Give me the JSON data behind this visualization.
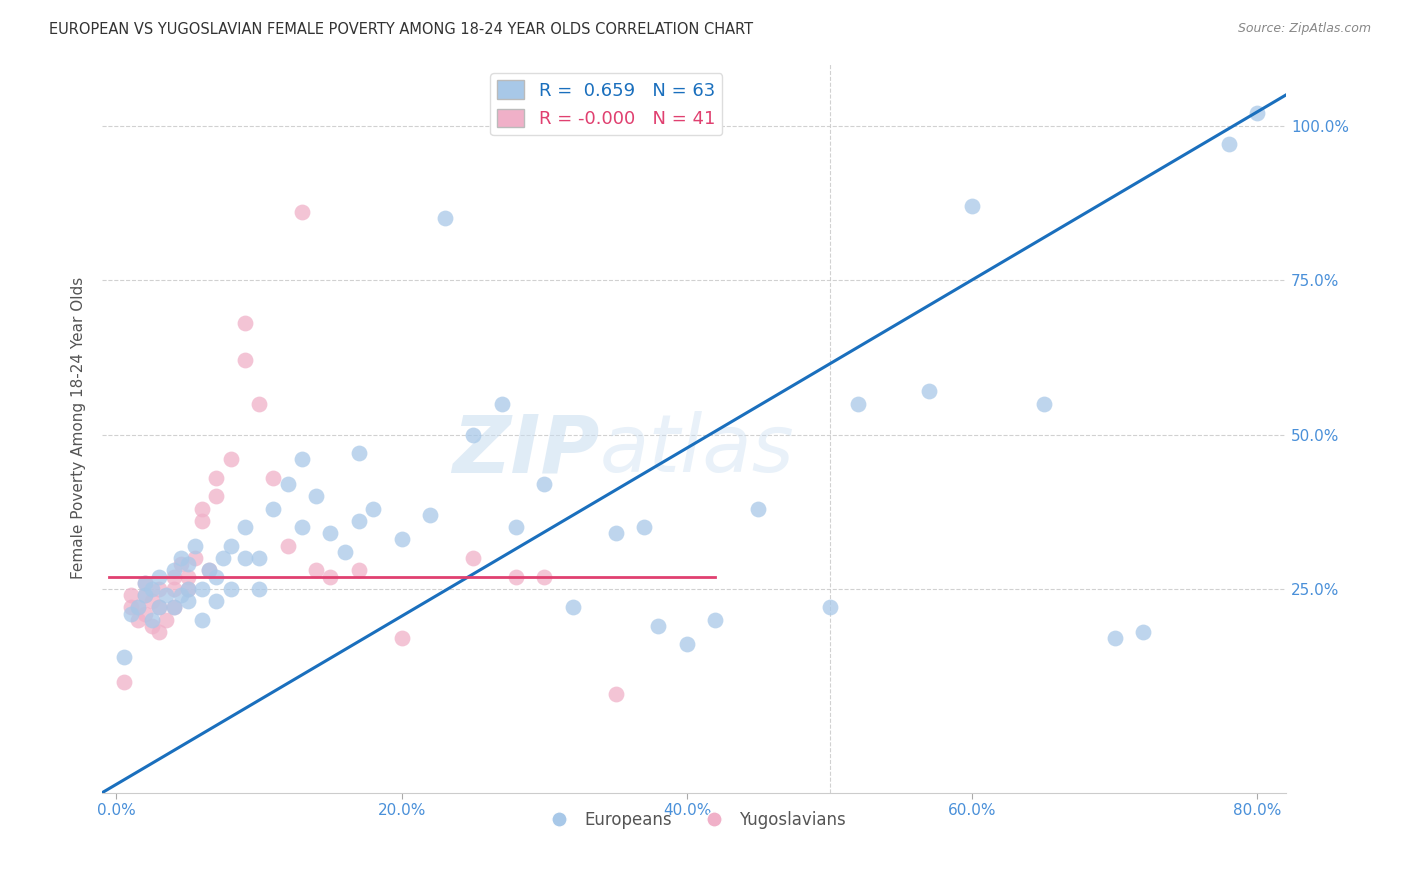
{
  "title": "EUROPEAN VS YUGOSLAVIAN FEMALE POVERTY AMONG 18-24 YEAR OLDS CORRELATION CHART",
  "source": "Source: ZipAtlas.com",
  "ylabel": "Female Poverty Among 18-24 Year Olds",
  "x_tick_labels": [
    "0.0%",
    "20.0%",
    "40.0%",
    "60.0%",
    "80.0%"
  ],
  "x_tick_values": [
    0.0,
    0.2,
    0.4,
    0.6,
    0.8
  ],
  "y_tick_labels": [
    "100.0%",
    "75.0%",
    "50.0%",
    "25.0%"
  ],
  "y_tick_values": [
    1.0,
    0.75,
    0.5,
    0.25
  ],
  "xlim": [
    -0.01,
    0.82
  ],
  "ylim": [
    -0.08,
    1.1
  ],
  "european_R": 0.659,
  "european_N": 63,
  "yugoslavian_R": -0.0,
  "yugoslavian_N": 41,
  "european_color": "#a8c8e8",
  "yugoslavian_color": "#f0b0c8",
  "european_line_color": "#1a6fbd",
  "yugoslavian_line_color": "#e04070",
  "background_color": "#ffffff",
  "grid_color": "#cccccc",
  "title_color": "#333333",
  "axis_label_color": "#4a90d9",
  "watermark_zip": "ZIP",
  "watermark_atlas": "atlas",
  "european_x": [
    0.005,
    0.01,
    0.015,
    0.02,
    0.02,
    0.025,
    0.025,
    0.03,
    0.03,
    0.035,
    0.04,
    0.04,
    0.045,
    0.045,
    0.05,
    0.05,
    0.05,
    0.055,
    0.06,
    0.06,
    0.065,
    0.07,
    0.07,
    0.075,
    0.08,
    0.08,
    0.09,
    0.09,
    0.1,
    0.1,
    0.11,
    0.12,
    0.13,
    0.13,
    0.14,
    0.15,
    0.16,
    0.17,
    0.17,
    0.18,
    0.2,
    0.22,
    0.23,
    0.25,
    0.27,
    0.28,
    0.3,
    0.32,
    0.35,
    0.37,
    0.38,
    0.4,
    0.42,
    0.45,
    0.5,
    0.52,
    0.57,
    0.6,
    0.65,
    0.7,
    0.72,
    0.78,
    0.8
  ],
  "european_y": [
    0.14,
    0.21,
    0.22,
    0.24,
    0.26,
    0.2,
    0.25,
    0.22,
    0.27,
    0.24,
    0.22,
    0.28,
    0.24,
    0.3,
    0.23,
    0.25,
    0.29,
    0.32,
    0.2,
    0.25,
    0.28,
    0.23,
    0.27,
    0.3,
    0.25,
    0.32,
    0.3,
    0.35,
    0.25,
    0.3,
    0.38,
    0.42,
    0.35,
    0.46,
    0.4,
    0.34,
    0.31,
    0.36,
    0.47,
    0.38,
    0.33,
    0.37,
    0.85,
    0.5,
    0.55,
    0.35,
    0.42,
    0.22,
    0.34,
    0.35,
    0.19,
    0.16,
    0.2,
    0.38,
    0.22,
    0.55,
    0.57,
    0.87,
    0.55,
    0.17,
    0.18,
    0.97,
    1.02
  ],
  "yugoslavian_x": [
    0.005,
    0.01,
    0.01,
    0.015,
    0.015,
    0.02,
    0.02,
    0.02,
    0.025,
    0.025,
    0.03,
    0.03,
    0.03,
    0.035,
    0.04,
    0.04,
    0.04,
    0.045,
    0.05,
    0.05,
    0.055,
    0.06,
    0.06,
    0.065,
    0.07,
    0.07,
    0.08,
    0.09,
    0.09,
    0.1,
    0.11,
    0.12,
    0.13,
    0.14,
    0.15,
    0.17,
    0.2,
    0.25,
    0.28,
    0.3,
    0.35
  ],
  "yugoslavian_y": [
    0.1,
    0.22,
    0.24,
    0.2,
    0.22,
    0.21,
    0.24,
    0.26,
    0.19,
    0.23,
    0.18,
    0.22,
    0.25,
    0.2,
    0.22,
    0.25,
    0.27,
    0.29,
    0.25,
    0.27,
    0.3,
    0.36,
    0.38,
    0.28,
    0.4,
    0.43,
    0.46,
    0.62,
    0.68,
    0.55,
    0.43,
    0.32,
    0.86,
    0.28,
    0.27,
    0.28,
    0.17,
    0.3,
    0.27,
    0.27,
    0.08
  ],
  "euro_line_x": [
    -0.01,
    0.82
  ],
  "euro_line_y": [
    -0.08,
    1.05
  ],
  "yugo_line_x": [
    -0.005,
    0.42
  ],
  "yugo_line_y": [
    0.27,
    0.27
  ]
}
